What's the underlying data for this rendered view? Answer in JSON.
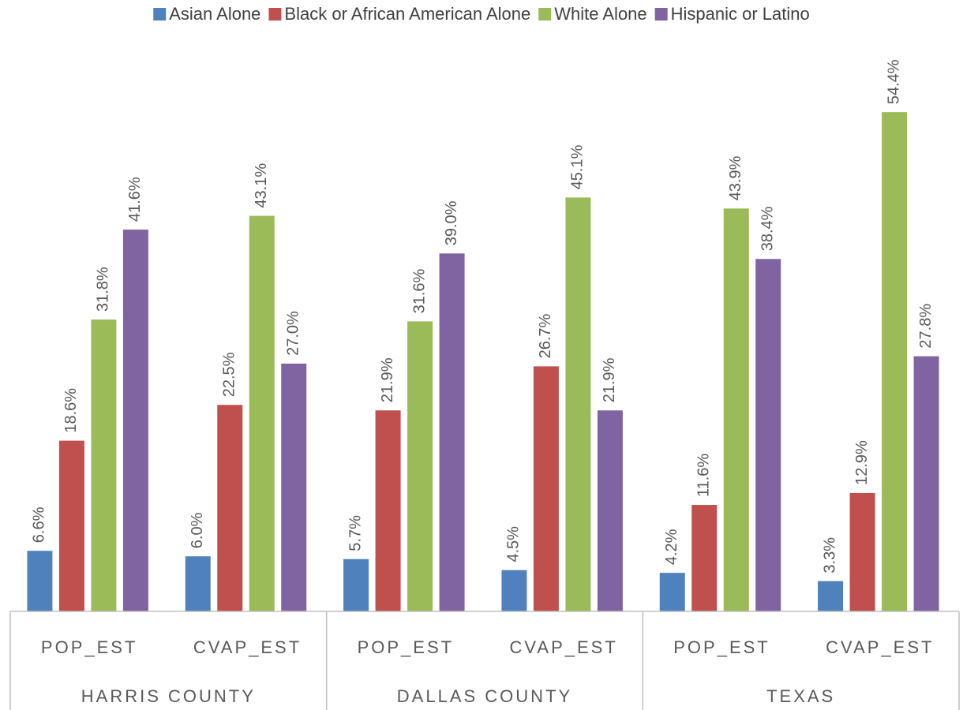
{
  "chart_data": {
    "type": "bar",
    "categories": [
      "POP_EST",
      "CVAP_EST",
      "POP_EST",
      "CVAP_EST",
      "POP_EST",
      "CVAP_EST"
    ],
    "groups": [
      "HARRIS COUNTY",
      "DALLAS COUNTY",
      "TEXAS"
    ],
    "series": [
      {
        "name": "Asian Alone",
        "color": "#4f81bd",
        "values": [
          6.6,
          6.0,
          5.7,
          4.5,
          4.2,
          3.3
        ],
        "value_labels": [
          "6.6%",
          "6.0%",
          "5.7%",
          "4.5%",
          "4.2%",
          "3.3%"
        ]
      },
      {
        "name": "Black or African American Alone",
        "color": "#c0504d",
        "values": [
          18.6,
          22.5,
          21.9,
          26.7,
          11.6,
          12.9
        ],
        "value_labels": [
          "18.6%",
          "22.5%",
          "21.9%",
          "26.7%",
          "11.6%",
          "12.9%"
        ]
      },
      {
        "name": "White Alone",
        "color": "#9bbb59",
        "values": [
          31.8,
          43.1,
          31.6,
          45.1,
          43.9,
          54.4
        ],
        "value_labels": [
          "31.8%",
          "43.1%",
          "31.6%",
          "45.1%",
          "43.9%",
          "54.4%"
        ]
      },
      {
        "name": "Hispanic or Latino",
        "color": "#8064a2",
        "values": [
          41.6,
          27.0,
          39.0,
          21.9,
          38.4,
          27.8
        ],
        "value_labels": [
          "41.6%",
          "27.0%",
          "39.0%",
          "21.9%",
          "38.4%",
          "27.8%"
        ]
      }
    ],
    "ylim": [
      0,
      60
    ],
    "legend": "top"
  }
}
